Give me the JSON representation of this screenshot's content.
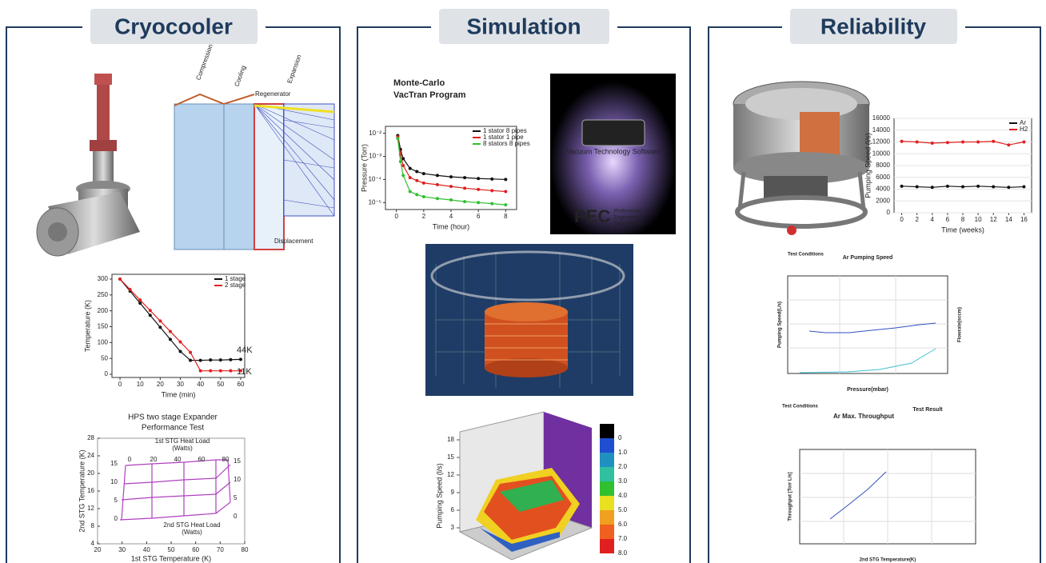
{
  "panels": [
    {
      "title": "Cryocooler",
      "cycle_diagram": {
        "labels": [
          "Compression",
          "Cooling",
          "Regenerator",
          "Expansion",
          "Displacement"
        ]
      },
      "cooldown_chart": {
        "type": "line",
        "xlabel": "Time (min)",
        "ylabel": "Temperature (K)",
        "x": [
          0,
          5,
          10,
          15,
          20,
          25,
          30,
          35,
          40,
          45,
          50,
          55,
          60
        ],
        "series": [
          {
            "name": "1 stage",
            "color": "#111111",
            "values": [
              300,
              262,
              224,
              186,
              148,
              110,
              72,
              44,
              44,
              45,
              45,
              46,
              47
            ]
          },
          {
            "name": "2 stage",
            "color": "#e02020",
            "values": [
              300,
              267,
              234,
              201,
              168,
              135,
              102,
              69,
              11,
              11,
              11,
              11,
              11
            ]
          }
        ],
        "annotations": [
          "44K",
          "11K"
        ],
        "xlim": [
          -4,
          62
        ],
        "ylim": [
          -10,
          315
        ],
        "xticks": [
          0,
          10,
          20,
          30,
          40,
          50,
          60
        ],
        "yticks": [
          0,
          50,
          100,
          150,
          200,
          250,
          300
        ]
      },
      "performance_chart": {
        "title": [
          "HPS two stage Expander",
          "Performance Test"
        ],
        "top_label": [
          "1st STG Heat Load",
          "(Watts)"
        ],
        "inner_label": [
          "2nd STG Heat Load",
          "(Watts)"
        ],
        "xlabel": "1st STG Temperature (K)",
        "ylabel": "2nd STG Temperature (K)",
        "xlim": [
          20,
          80
        ],
        "ylim": [
          4,
          28
        ],
        "xticks": [
          20,
          30,
          40,
          50,
          60,
          70,
          80
        ],
        "yticks": [
          4,
          8,
          12,
          16,
          20,
          24,
          28
        ],
        "top_ticks": [
          0,
          20,
          40,
          60,
          80
        ],
        "left_curve_labels": [
          15,
          10,
          5,
          0
        ],
        "right_curve_labels": [
          15,
          10,
          5,
          0
        ]
      }
    },
    {
      "title": "Simulation",
      "program_label": [
        "Monte-Carlo",
        "VacTran Program"
      ],
      "pressure_chart": {
        "type": "line",
        "log": true,
        "xlabel": "Time (hour)",
        "ylabel": "Pressure (Torr)",
        "x": [
          0.1,
          0.3,
          0.5,
          1,
          1.5,
          2,
          3,
          4,
          5,
          6,
          7,
          8
        ],
        "series": [
          {
            "name": "1 stator 8 pipes",
            "color": "#111111",
            "values": [
              0.008,
              0.002,
              0.0008,
              0.0003,
              0.00022,
              0.00018,
              0.00015,
              0.00013,
              0.00012,
              0.00011,
              0.000105,
              0.0001
            ]
          },
          {
            "name": "1 stator 1 pipe",
            "color": "#e02020",
            "values": [
              0.007,
              0.0012,
              0.0004,
              0.00012,
              9e-05,
              7e-05,
              6e-05,
              5e-05,
              4.2e-05,
              3.7e-05,
              3.3e-05,
              3e-05
            ]
          },
          {
            "name": "8 stators 8 pipes",
            "color": "#30c030",
            "values": [
              0.006,
              0.0006,
              0.00015,
              3e-05,
              2.2e-05,
              1.8e-05,
              1.5e-05,
              1.3e-05,
              1.1e-05,
              1e-05,
              9e-06,
              8e-06
            ]
          }
        ],
        "xlim": [
          -0.8,
          8.8
        ],
        "ylim": [
          5e-06,
          0.02
        ],
        "xticks": [
          0,
          2,
          4,
          6,
          8
        ],
        "yticks": [
          {
            "value": 1e-05,
            "label": "10⁻⁵"
          },
          {
            "value": 0.0001,
            "label": "10⁻⁴"
          },
          {
            "value": 0.001,
            "label": "10⁻³"
          },
          {
            "value": 0.01,
            "label": "10⁻²"
          }
        ]
      },
      "logo": {
        "name": "VacTran",
        "subtitle": "Vacuum Technology Software",
        "company": "PEC",
        "company_name": [
          "Professional",
          "Engineering",
          "Computations"
        ]
      },
      "surface_plot": {
        "ylabel": "Pumping Speed (l/s)",
        "zticks": [
          3,
          6,
          9,
          12,
          15,
          18
        ],
        "colorbar": [
          0,
          {
            "value": 1,
            "label": "1.0"
          },
          {
            "value": 2,
            "label": "2.0"
          },
          {
            "value": 3,
            "label": "3.0"
          },
          {
            "value": 4,
            "label": "4.0"
          },
          {
            "value": 5,
            "label": "5.0"
          },
          {
            "value": 6,
            "label": "6.0"
          },
          {
            "value": 7,
            "label": "7.0"
          },
          {
            "value": 8,
            "label": "8.0"
          }
        ]
      }
    },
    {
      "title": "Reliability",
      "speed_chart": {
        "type": "line",
        "xlabel": "Time (weeks)",
        "ylabel": "Pumping Speed (l/s)",
        "x": [
          0,
          2,
          4,
          6,
          8,
          10,
          12,
          14,
          16
        ],
        "series": [
          {
            "name": "Ar",
            "color": "#111111",
            "values": [
              4500,
              4400,
              4300,
              4500,
              4400,
              4500,
              4400,
              4300,
              4400
            ]
          },
          {
            "name": "H2",
            "color": "#e02020",
            "values": [
              12100,
              12000,
              11800,
              11900,
              12000,
              12000,
              12100,
              11500,
              12000
            ]
          }
        ],
        "xlim": [
          -1,
          17
        ],
        "ylim": [
          0,
          16000
        ],
        "xticks": [
          0,
          2,
          4,
          6,
          8,
          10,
          12,
          14,
          16
        ],
        "yticks": [
          0,
          2000,
          4000,
          6000,
          8000,
          10000,
          12000,
          14000,
          16000
        ]
      },
      "ar_speed": {
        "notes": "Test Conditions",
        "title": "Ar Pumping Speed",
        "xlabel": "Pressure(mbar)",
        "ylabel": "Pumping Speed(L/s)",
        "y2label": "Flowrate(sccm)"
      },
      "throughput": {
        "notes": "Test Conditions",
        "title": "Ar Max. Throughput",
        "result": "Test Result",
        "xlabel": "2nd STG Temperature(K)",
        "ylabel": "Throughput [Torr L/s]"
      }
    }
  ]
}
